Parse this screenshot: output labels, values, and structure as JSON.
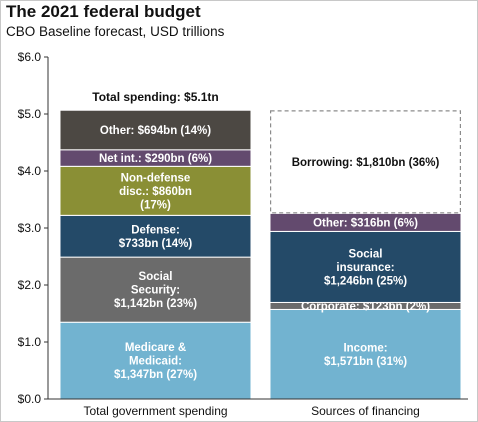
{
  "chart_data": {
    "type": "bar",
    "stacked": true,
    "title": "The 2021 federal budget",
    "subtitle": "CBO Baseline forecast, USD trillions",
    "ylim": [
      0,
      6
    ],
    "yticks": [
      "$0.0",
      "$1.0",
      "$2.0",
      "$3.0",
      "$4.0",
      "$5.0",
      "$6.0"
    ],
    "ytick_values": [
      0,
      1,
      2,
      3,
      4,
      5,
      6
    ],
    "grid": false,
    "categories": [
      "Total government spending",
      "Sources of financing"
    ],
    "bars": [
      {
        "category": "Total government spending",
        "annotation": "Total spending: $5.1tn",
        "segments": [
          {
            "value": 1.347,
            "label_lines": [
              "Medicare &",
              "Medicaid:",
              "$1,347bn (27%)"
            ],
            "color": "#72b3d0",
            "text_color": "#ffffff"
          },
          {
            "value": 1.142,
            "label_lines": [
              "Social",
              "Security:",
              "$1,142bn (23%)"
            ],
            "color": "#6b6b6b",
            "text_color": "#ffffff"
          },
          {
            "value": 0.733,
            "label_lines": [
              "Defense:",
              "$733bn (14%)"
            ],
            "color": "#244a68",
            "text_color": "#ffffff"
          },
          {
            "value": 0.86,
            "label_lines": [
              "Non-defense",
              "disc.: $860bn",
              "(17%)"
            ],
            "color": "#8a8f35",
            "text_color": "#ffffff"
          },
          {
            "value": 0.29,
            "label_lines": [
              "Net int.: $290bn (6%)"
            ],
            "color": "#634a6e",
            "text_color": "#ffffff"
          },
          {
            "value": 0.694,
            "label_lines": [
              "Other: $694bn (14%)"
            ],
            "color": "#4c4843",
            "text_color": "#ffffff"
          }
        ]
      },
      {
        "category": "Sources of financing",
        "segments": [
          {
            "value": 1.571,
            "label_lines": [
              "Income:",
              "$1,571bn (31%)"
            ],
            "color": "#72b3d0",
            "text_color": "#ffffff"
          },
          {
            "value": 0.123,
            "label_lines": [
              "Corporate: $123bn (2%)"
            ],
            "color": "#6b6b6b",
            "text_color": "#ffffff"
          },
          {
            "value": 1.246,
            "label_lines": [
              "Social",
              "insurance:",
              "$1,246bn (25%)"
            ],
            "color": "#244a68",
            "text_color": "#ffffff"
          },
          {
            "value": 0.316,
            "label_lines": [
              "Other: $316bn (6%)"
            ],
            "color": "#634a6e",
            "text_color": "#ffffff"
          },
          {
            "value": 1.81,
            "label_lines": [
              "Borrowing: $1,810bn (36%)"
            ],
            "color": "#ffffff",
            "text_color": "#111111",
            "dashed": true
          }
        ]
      }
    ]
  }
}
